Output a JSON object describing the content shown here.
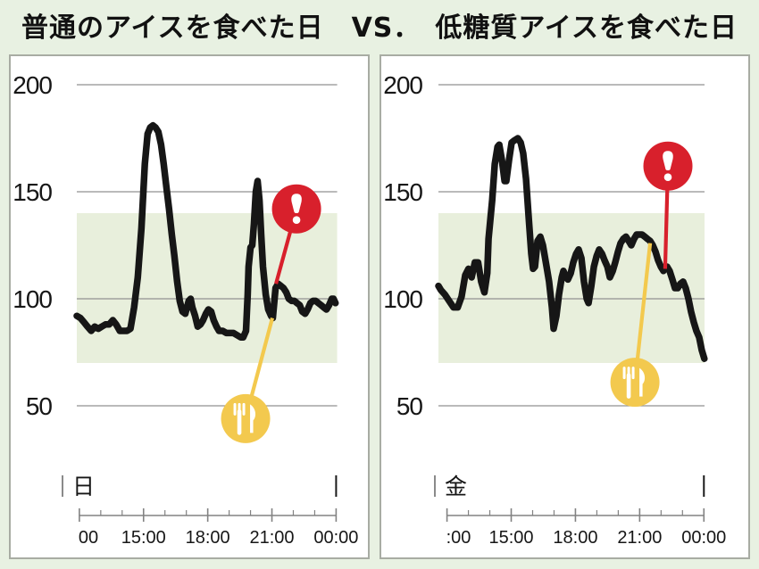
{
  "page": {
    "title": "普通のアイスを食べた日　VS．　低糖質アイスを食べた日"
  },
  "colors": {
    "page_bg": "#e8f1e2",
    "panel_bg": "#ffffff",
    "panel_border": "#a8aca3",
    "target_band_green": "#e8efdc",
    "gridline_gray": "#919191",
    "axis_gray": "#828282",
    "trace_black": "#161616",
    "alert_red": "#d8202c",
    "meal_yellow": "#f3c94e",
    "icon_white": "#ffffff",
    "text_color": "#161616"
  },
  "chart_data": [
    {
      "type": "line",
      "panel": "regular-ice-day",
      "day_label": "日",
      "ylabel": "",
      "xlabel": "",
      "ylim": [
        40,
        210
      ],
      "y_ticks": [
        200,
        150,
        100,
        50
      ],
      "x_ticks": [
        {
          "t": 12,
          "label": "00"
        },
        {
          "t": 15,
          "label": "15:00"
        },
        {
          "t": 18,
          "label": "18:00"
        },
        {
          "t": 21,
          "label": "21:00"
        },
        {
          "t": 24,
          "label": "00:00"
        }
      ],
      "target_range": [
        70,
        140
      ],
      "grid": true,
      "series": [
        [
          11.88,
          92
        ],
        [
          12.05,
          91
        ],
        [
          12.22,
          89
        ],
        [
          12.38,
          87
        ],
        [
          12.55,
          85
        ],
        [
          12.72,
          87
        ],
        [
          12.89,
          86
        ],
        [
          13.05,
          87
        ],
        [
          13.22,
          88
        ],
        [
          13.39,
          88
        ],
        [
          13.56,
          90
        ],
        [
          13.72,
          88
        ],
        [
          13.89,
          85
        ],
        [
          14.06,
          85
        ],
        [
          14.23,
          85
        ],
        [
          14.39,
          86
        ],
        [
          14.56,
          96
        ],
        [
          14.73,
          110
        ],
        [
          14.9,
          133
        ],
        [
          15.06,
          163
        ],
        [
          15.19,
          177
        ],
        [
          15.31,
          180
        ],
        [
          15.44,
          181
        ],
        [
          15.56,
          180
        ],
        [
          15.69,
          178
        ],
        [
          15.82,
          172
        ],
        [
          15.94,
          163
        ],
        [
          16.07,
          152
        ],
        [
          16.19,
          142
        ],
        [
          16.32,
          130
        ],
        [
          16.44,
          120
        ],
        [
          16.57,
          108
        ],
        [
          16.69,
          99
        ],
        [
          16.82,
          94
        ],
        [
          16.95,
          93
        ],
        [
          17.03,
          96
        ],
        [
          17.11,
          99
        ],
        [
          17.2,
          100
        ],
        [
          17.28,
          96
        ],
        [
          17.41,
          92
        ],
        [
          17.53,
          87
        ],
        [
          17.66,
          88
        ],
        [
          17.78,
          90
        ],
        [
          17.91,
          93
        ],
        [
          18.03,
          95
        ],
        [
          18.16,
          94
        ],
        [
          18.28,
          90
        ],
        [
          18.41,
          87
        ],
        [
          18.53,
          85
        ],
        [
          18.7,
          85
        ],
        [
          18.87,
          84
        ],
        [
          19.04,
          84
        ],
        [
          19.2,
          84
        ],
        [
          19.37,
          83
        ],
        [
          19.54,
          82
        ],
        [
          19.66,
          82
        ],
        [
          19.79,
          85
        ],
        [
          19.87,
          102
        ],
        [
          19.91,
          115
        ],
        [
          20.0,
          124
        ],
        [
          20.08,
          125
        ],
        [
          20.16,
          135
        ],
        [
          20.25,
          150
        ],
        [
          20.33,
          155
        ],
        [
          20.42,
          146
        ],
        [
          20.5,
          130
        ],
        [
          20.58,
          115
        ],
        [
          20.71,
          102
        ],
        [
          20.83,
          95
        ],
        [
          20.96,
          92
        ],
        [
          21.04,
          91
        ],
        [
          21.17,
          105
        ],
        [
          21.29,
          107
        ],
        [
          21.42,
          106
        ],
        [
          21.54,
          105
        ],
        [
          21.67,
          103
        ],
        [
          21.79,
          100
        ],
        [
          21.92,
          99
        ],
        [
          22.05,
          99
        ],
        [
          22.17,
          98
        ],
        [
          22.3,
          97
        ],
        [
          22.42,
          94
        ],
        [
          22.55,
          93
        ],
        [
          22.67,
          95
        ],
        [
          22.8,
          98
        ],
        [
          22.92,
          99
        ],
        [
          23.05,
          99
        ],
        [
          23.17,
          98
        ],
        [
          23.3,
          97
        ],
        [
          23.42,
          96
        ],
        [
          23.55,
          95
        ],
        [
          23.67,
          97
        ],
        [
          23.8,
          100
        ],
        [
          23.88,
          100
        ],
        [
          23.97,
          98
        ]
      ],
      "meal_marker": {
        "t": 19.77,
        "v": 44,
        "attach_t": 21.02,
        "attach_v": 91
      },
      "alert_marker": {
        "t": 22.15,
        "v": 142,
        "attach_t": 21.19,
        "attach_v": 107
      }
    },
    {
      "type": "line",
      "panel": "low-carb-ice-day",
      "day_label": "金",
      "ylabel": "",
      "xlabel": "",
      "ylim": [
        40,
        210
      ],
      "y_ticks": [
        200,
        150,
        100,
        50
      ],
      "x_ticks": [
        {
          "t": 12,
          "label": ":00"
        },
        {
          "t": 15,
          "label": "15:00"
        },
        {
          "t": 18,
          "label": "18:00"
        },
        {
          "t": 21,
          "label": "21:00"
        },
        {
          "t": 24,
          "label": "00:00"
        }
      ],
      "target_range": [
        70,
        140
      ],
      "grid": true,
      "series": [
        [
          11.6,
          106
        ],
        [
          11.72,
          104
        ],
        [
          11.9,
          102
        ],
        [
          12.1,
          99
        ],
        [
          12.3,
          96
        ],
        [
          12.5,
          96
        ],
        [
          12.68,
          101
        ],
        [
          12.85,
          111
        ],
        [
          13.0,
          114
        ],
        [
          13.15,
          110
        ],
        [
          13.3,
          117
        ],
        [
          13.45,
          117
        ],
        [
          13.6,
          108
        ],
        [
          13.75,
          103
        ],
        [
          13.88,
          112
        ],
        [
          13.94,
          128
        ],
        [
          14.11,
          146
        ],
        [
          14.23,
          163
        ],
        [
          14.36,
          171
        ],
        [
          14.44,
          172
        ],
        [
          14.56,
          165
        ],
        [
          14.69,
          155
        ],
        [
          14.77,
          155
        ],
        [
          14.9,
          165
        ],
        [
          15.02,
          173
        ],
        [
          15.15,
          174
        ],
        [
          15.31,
          175
        ],
        [
          15.44,
          173
        ],
        [
          15.56,
          168
        ],
        [
          15.69,
          156
        ],
        [
          15.81,
          139
        ],
        [
          15.94,
          121
        ],
        [
          16.02,
          114
        ],
        [
          16.11,
          115
        ],
        [
          16.23,
          127
        ],
        [
          16.36,
          129
        ],
        [
          16.48,
          125
        ],
        [
          16.65,
          115
        ],
        [
          16.77,
          108
        ],
        [
          16.9,
          96
        ],
        [
          16.98,
          86
        ],
        [
          17.11,
          92
        ],
        [
          17.23,
          102
        ],
        [
          17.36,
          110
        ],
        [
          17.44,
          113
        ],
        [
          17.57,
          110
        ],
        [
          17.65,
          109
        ],
        [
          17.78,
          112
        ],
        [
          17.9,
          117
        ],
        [
          18.03,
          121
        ],
        [
          18.15,
          123
        ],
        [
          18.28,
          119
        ],
        [
          18.4,
          108
        ],
        [
          18.53,
          100
        ],
        [
          18.61,
          98
        ],
        [
          18.74,
          106
        ],
        [
          18.86,
          115
        ],
        [
          18.99,
          120
        ],
        [
          19.11,
          123
        ],
        [
          19.24,
          121
        ],
        [
          19.36,
          118
        ],
        [
          19.49,
          115
        ],
        [
          19.61,
          110
        ],
        [
          19.74,
          113
        ],
        [
          19.86,
          117
        ],
        [
          19.99,
          122
        ],
        [
          20.11,
          126
        ],
        [
          20.24,
          128
        ],
        [
          20.36,
          129
        ],
        [
          20.49,
          127
        ],
        [
          20.61,
          125
        ],
        [
          20.74,
          128
        ],
        [
          20.86,
          130
        ],
        [
          20.99,
          130
        ],
        [
          21.11,
          130
        ],
        [
          21.24,
          129
        ],
        [
          21.36,
          128
        ],
        [
          21.49,
          127
        ],
        [
          21.61,
          125
        ],
        [
          21.74,
          122
        ],
        [
          21.86,
          118
        ],
        [
          21.99,
          115
        ],
        [
          22.11,
          113
        ],
        [
          22.19,
          115
        ],
        [
          22.28,
          115
        ],
        [
          22.4,
          113
        ],
        [
          22.53,
          109
        ],
        [
          22.65,
          105
        ],
        [
          22.78,
          105
        ],
        [
          22.9,
          107
        ],
        [
          23.03,
          108
        ],
        [
          23.15,
          105
        ],
        [
          23.28,
          100
        ],
        [
          23.4,
          94
        ],
        [
          23.53,
          89
        ],
        [
          23.65,
          85
        ],
        [
          23.78,
          82
        ],
        [
          23.9,
          76
        ],
        [
          24.02,
          72
        ]
      ],
      "meal_marker": {
        "t": 20.78,
        "v": 61,
        "attach_t": 21.49,
        "attach_v": 126
      },
      "alert_marker": {
        "t": 22.32,
        "v": 162,
        "attach_t": 22.19,
        "attach_v": 114
      }
    }
  ]
}
